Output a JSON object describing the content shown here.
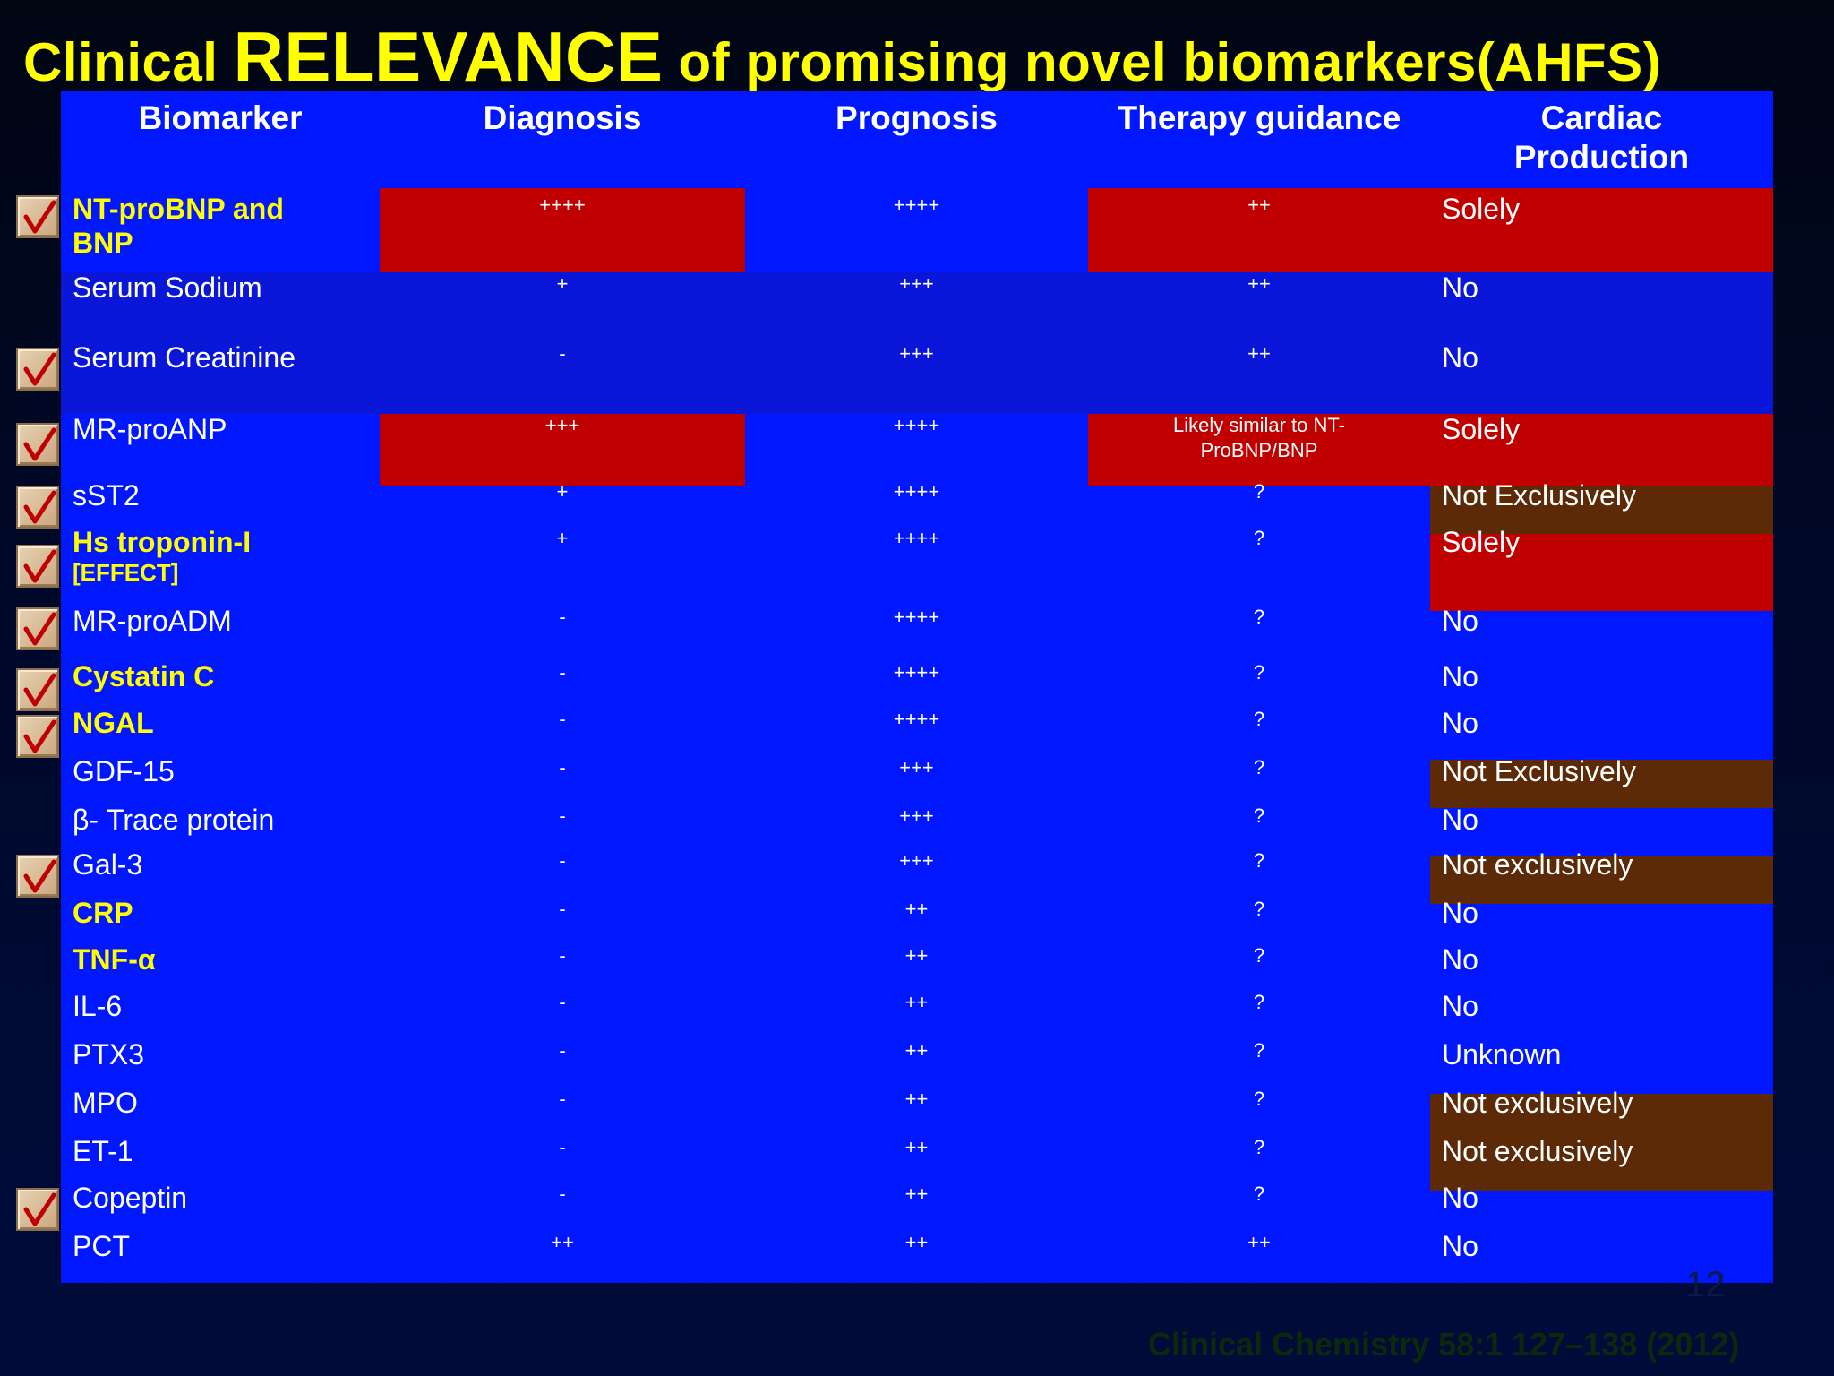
{
  "title": {
    "pre": "Clinical ",
    "highlight": "RELEVANCE",
    "post": " of promising novel biomarkers(AHFS)"
  },
  "headers": {
    "biomarker": "Biomarker",
    "diagnosis": "Diagnosis",
    "prognosis": "Prognosis",
    "therapy": "Therapy guidance",
    "cardiac_line1": "Cardiac",
    "cardiac_line2": "Production"
  },
  "rows": [
    {
      "name": "NT-proBNP and",
      "name2": "BNP",
      "diagnosis": "++++",
      "prognosis": "++++",
      "therapy": "++",
      "cardiac": "Solely",
      "checked": true,
      "highlight": true
    },
    {
      "name": "Serum Sodium",
      "diagnosis": "+",
      "prognosis": "+++",
      "therapy": "++",
      "cardiac": "No",
      "checked": false,
      "highlight": false
    },
    {
      "name": "Serum Creatinine",
      "diagnosis": "-",
      "prognosis": "+++",
      "therapy": "++",
      "cardiac": "No",
      "checked": true,
      "highlight": false
    },
    {
      "name": "MR-proANP",
      "diagnosis": "+++",
      "prognosis": "++++",
      "therapy_line1": "Likely similar to NT-",
      "therapy_line2": "ProBNP/BNP",
      "cardiac": "Solely",
      "checked": true,
      "highlight": false
    },
    {
      "name": "sST2",
      "diagnosis": "+",
      "prognosis": "++++",
      "therapy": "?",
      "cardiac": "Not Exclusively",
      "checked": true,
      "highlight": false
    },
    {
      "name": "Hs troponin-I",
      "name2": "[EFFECT]",
      "diagnosis": "+",
      "prognosis": "++++",
      "therapy": "?",
      "cardiac": "Solely",
      "checked": true,
      "highlight": true
    },
    {
      "name": "MR-proADM",
      "diagnosis": "-",
      "prognosis": "++++",
      "therapy": "?",
      "cardiac": "No",
      "checked": true,
      "highlight": false
    },
    {
      "name": "Cystatin C",
      "diagnosis": "-",
      "prognosis": "++++",
      "therapy": "?",
      "cardiac": "No",
      "checked": true,
      "highlight": true
    },
    {
      "name": "NGAL",
      "diagnosis": "-",
      "prognosis": "++++",
      "therapy": "?",
      "cardiac": "No",
      "checked": true,
      "highlight": true
    },
    {
      "name": "GDF-15",
      "diagnosis": "-",
      "prognosis": "+++",
      "therapy": "?",
      "cardiac": "Not Exclusively",
      "checked": false,
      "highlight": false
    },
    {
      "name": "β- Trace protein",
      "diagnosis": "-",
      "prognosis": "+++",
      "therapy": "?",
      "cardiac": "No",
      "checked": false,
      "highlight": false
    },
    {
      "name": "Gal-3",
      "diagnosis": "-",
      "prognosis": "+++",
      "therapy": "?",
      "cardiac": "Not exclusively",
      "checked": true,
      "highlight": false
    },
    {
      "name": "CRP",
      "diagnosis": "-",
      "prognosis": "++",
      "therapy": "?",
      "cardiac": "No",
      "checked": false,
      "highlight": true
    },
    {
      "name": "TNF-α",
      "diagnosis": "-",
      "prognosis": "++",
      "therapy": "?",
      "cardiac": "No",
      "checked": false,
      "highlight": true
    },
    {
      "name": "IL-6",
      "diagnosis": "-",
      "prognosis": "++",
      "therapy": "?",
      "cardiac": "No",
      "checked": false,
      "highlight": false
    },
    {
      "name": "PTX3",
      "diagnosis": "-",
      "prognosis": "++",
      "therapy": "?",
      "cardiac": "Unknown",
      "checked": false,
      "highlight": false
    },
    {
      "name": "MPO",
      "diagnosis": "-",
      "prognosis": "++",
      "therapy": "?",
      "cardiac": "Not exclusively",
      "checked": false,
      "highlight": false
    },
    {
      "name": "ET-1",
      "diagnosis": "-",
      "prognosis": "++",
      "therapy": "?",
      "cardiac": "Not exclusively",
      "checked": false,
      "highlight": false
    },
    {
      "name": "Copeptin",
      "diagnosis": "-",
      "prognosis": "++",
      "therapy": "?",
      "cardiac": "No",
      "checked": true,
      "highlight": false
    },
    {
      "name": "PCT",
      "diagnosis": "++",
      "prognosis": "++",
      "therapy": "++",
      "cardiac": "No",
      "checked": false,
      "highlight": false
    }
  ],
  "page_number": "12",
  "citation": "Clinical Chemistry 58:1 127–138 (2012)",
  "colors": {
    "title": "#ffff00",
    "table": "#0017ff",
    "red": "#c00000",
    "brown": "#5c2a07",
    "check": "#c00000"
  },
  "icons": {
    "row_check": "checkbox-check-icon"
  }
}
